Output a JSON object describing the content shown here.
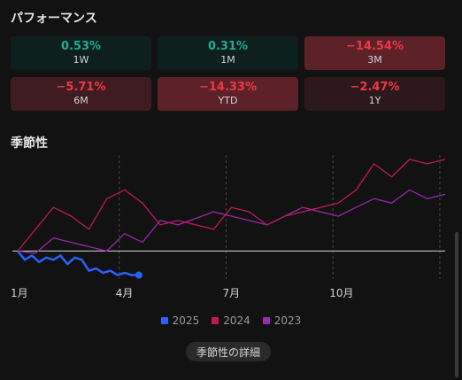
{
  "performance": {
    "title": "パフォーマンス",
    "tiles": [
      {
        "value": "0.53%",
        "label": "1W",
        "color": "#22ab94",
        "bg": "#0d201d"
      },
      {
        "value": "0.31%",
        "label": "1M",
        "color": "#22ab94",
        "bg": "#0d201d"
      },
      {
        "value": "−14.54%",
        "label": "3M",
        "color": "#f23645",
        "bg": "#5c2228"
      },
      {
        "value": "−5.71%",
        "label": "6M",
        "color": "#f23645",
        "bg": "#3f1c20"
      },
      {
        "value": "−14.33%",
        "label": "YTD",
        "color": "#f23645",
        "bg": "#5c2228"
      },
      {
        "value": "−2.47%",
        "label": "1Y",
        "color": "#f23645",
        "bg": "#2d181b"
      }
    ]
  },
  "seasonality": {
    "title": "季節性",
    "details_button": "季節性の詳細"
  },
  "chart_data": {
    "type": "line",
    "x_ticks": [
      "1月",
      "4月",
      "7月",
      "10月"
    ],
    "x_domain": [
      0,
      12
    ],
    "y_domain": [
      -0.06,
      0.22
    ],
    "baseline": 0,
    "series": [
      {
        "name": "2025",
        "color": "#2962ff",
        "x": [
          0,
          0.2,
          0.4,
          0.6,
          0.8,
          1.0,
          1.2,
          1.4,
          1.6,
          1.8,
          2.0,
          2.2,
          2.4,
          2.6,
          2.8,
          3.0,
          3.2,
          3.4
        ],
        "y": [
          0.0,
          -0.02,
          -0.01,
          -0.025,
          -0.015,
          -0.02,
          -0.01,
          -0.03,
          -0.015,
          -0.02,
          -0.045,
          -0.04,
          -0.05,
          -0.045,
          -0.055,
          -0.05,
          -0.055,
          -0.055
        ]
      },
      {
        "name": "2024",
        "color": "#c2185b",
        "x": [
          0,
          0.5,
          1.0,
          1.5,
          2.0,
          2.5,
          3.0,
          3.5,
          4.0,
          4.5,
          5.0,
          5.5,
          6.0,
          6.5,
          7.0,
          7.5,
          8.0,
          8.5,
          9.0,
          9.5,
          10.0,
          10.5,
          11.0,
          11.5,
          12.0
        ],
        "y": [
          0.0,
          0.05,
          0.1,
          0.08,
          0.05,
          0.12,
          0.14,
          0.11,
          0.06,
          0.07,
          0.06,
          0.05,
          0.1,
          0.09,
          0.06,
          0.08,
          0.09,
          0.1,
          0.11,
          0.14,
          0.2,
          0.17,
          0.21,
          0.2,
          0.21
        ]
      },
      {
        "name": "2023",
        "color": "#9c27b0",
        "x": [
          0,
          0.5,
          1.0,
          1.5,
          2.0,
          2.5,
          3.0,
          3.5,
          4.0,
          4.5,
          5.0,
          5.5,
          6.0,
          6.5,
          7.0,
          7.5,
          8.0,
          8.5,
          9.0,
          9.5,
          10.0,
          10.5,
          11.0,
          11.5,
          12.0
        ],
        "y": [
          0.0,
          -0.005,
          0.03,
          0.02,
          0.01,
          0.0,
          0.04,
          0.02,
          0.07,
          0.06,
          0.075,
          0.09,
          0.08,
          0.07,
          0.06,
          0.08,
          0.1,
          0.09,
          0.08,
          0.1,
          0.12,
          0.11,
          0.14,
          0.12,
          0.13
        ]
      }
    ]
  }
}
